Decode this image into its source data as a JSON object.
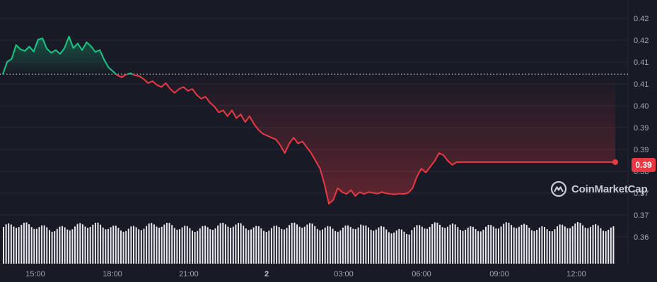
{
  "chart_data": {
    "type": "line",
    "title": "",
    "xlabel": "",
    "ylabel": "",
    "x_ticks": [
      "15:00",
      "18:00",
      "21:00",
      "2",
      "03:00",
      "06:00",
      "09:00",
      "12:00"
    ],
    "y_ticks": [
      "0.42",
      "0.42",
      "0.41",
      "0.41",
      "0.40",
      "0.39",
      "0.39",
      "0.38",
      "0.37",
      "0.37",
      "0.36"
    ],
    "ylim": [
      0.3596,
      0.4241
    ],
    "reference_price": 0.4083,
    "current_price_label": "0.39",
    "current_price": 0.3857,
    "series": [
      {
        "x": [
          "14:00",
          "14:10",
          "14:20",
          "14:30",
          "14:40",
          "14:50",
          "15:00",
          "15:10",
          "15:20",
          "15:30",
          "15:40",
          "15:50",
          "16:00",
          "16:10",
          "16:20",
          "16:30",
          "16:40",
          "16:50",
          "17:00",
          "17:10",
          "17:20",
          "17:30",
          "17:40",
          "17:50",
          "18:00",
          "18:10",
          "18:20",
          "18:30",
          "18:40",
          "18:50",
          "19:00",
          "19:10",
          "19:20",
          "19:30",
          "19:40",
          "19:50",
          "20:00",
          "20:10",
          "20:20",
          "20:30",
          "20:40",
          "20:50",
          "21:00",
          "21:10",
          "21:20",
          "21:30",
          "21:40",
          "21:50",
          "22:00",
          "22:10",
          "22:20",
          "22:30",
          "22:40",
          "22:50",
          "23:00",
          "23:10",
          "23:20",
          "23:30",
          "23:40",
          "23:50",
          "00:00",
          "00:10",
          "00:20",
          "00:30",
          "00:40",
          "00:50",
          "01:00",
          "01:10",
          "01:20",
          "01:30",
          "01:40",
          "01:50",
          "02:00",
          "02:10",
          "02:20",
          "02:30",
          "02:40",
          "02:50",
          "03:00",
          "03:10",
          "03:20",
          "03:30",
          "03:40",
          "03:50",
          "04:00",
          "04:10",
          "04:20",
          "04:30",
          "04:40",
          "04:50",
          "05:00",
          "05:10",
          "05:20",
          "05:30",
          "05:40",
          "05:50",
          "06:00",
          "06:10",
          "06:20",
          "06:30",
          "06:40",
          "06:50",
          "07:00",
          "07:10",
          "07:20",
          "07:30",
          "07:40",
          "07:50",
          "08:00",
          "08:10",
          "08:20",
          "08:30",
          "08:40",
          "08:50",
          "09:00",
          "09:10",
          "09:20",
          "09:30",
          "09:40",
          "09:50",
          "10:00",
          "10:10",
          "10:20",
          "10:30",
          "10:40",
          "10:50",
          "11:00",
          "11:10",
          "11:20",
          "11:30",
          "11:40",
          "11:50",
          "12:00",
          "12:10",
          "12:20",
          "12:30",
          "12:40",
          "12:50",
          "13:00",
          "13:10"
        ],
        "values": [
          0.4083,
          0.4115,
          0.4122,
          0.4158,
          0.4147,
          0.4143,
          0.4154,
          0.4141,
          0.4172,
          0.4175,
          0.4148,
          0.4138,
          0.4145,
          0.4135,
          0.415,
          0.418,
          0.415,
          0.4162,
          0.4145,
          0.4165,
          0.4155,
          0.414,
          0.4145,
          0.412,
          0.41,
          0.409,
          0.408,
          0.4075,
          0.4082,
          0.4085,
          0.408,
          0.4078,
          0.407,
          0.406,
          0.4065,
          0.4055,
          0.405,
          0.406,
          0.4045,
          0.4035,
          0.4045,
          0.405,
          0.404,
          0.4045,
          0.403,
          0.402,
          0.4025,
          0.401,
          0.4,
          0.3985,
          0.399,
          0.3975,
          0.399,
          0.397,
          0.398,
          0.396,
          0.3975,
          0.3955,
          0.394,
          0.393,
          0.3925,
          0.392,
          0.3915,
          0.39,
          0.388,
          0.3905,
          0.392,
          0.3905,
          0.391,
          0.3895,
          0.388,
          0.386,
          0.384,
          0.38,
          0.375,
          0.376,
          0.379,
          0.378,
          0.3775,
          0.3785,
          0.377,
          0.378,
          0.3775,
          0.378,
          0.3778,
          0.3776,
          0.378,
          0.3777,
          0.3775,
          0.3774,
          0.3776,
          0.3775,
          0.3778,
          0.379,
          0.382,
          0.384,
          0.383,
          0.3845,
          0.386,
          0.388,
          0.3875,
          0.386,
          0.385,
          0.3857,
          0.3857,
          0.3857,
          0.3857,
          0.3857,
          0.3857,
          0.3857,
          0.3857,
          0.3857,
          0.3857,
          0.3857,
          0.3857,
          0.3857,
          0.3857,
          0.3857,
          0.3857,
          0.3857,
          0.3857,
          0.3857,
          0.3857,
          0.3857,
          0.3857,
          0.3857,
          0.3857,
          0.3857,
          0.3857,
          0.3857,
          0.3857,
          0.3857,
          0.3857,
          0.3857,
          0.3857,
          0.3857,
          0.3857,
          0.3857,
          0.3857,
          0.3857
        ]
      }
    ],
    "volume_bars": 240,
    "up_color": "#16c784",
    "down_color": "#ea3943",
    "grid": true
  },
  "watermark": {
    "brand": "CoinMarketCap"
  }
}
